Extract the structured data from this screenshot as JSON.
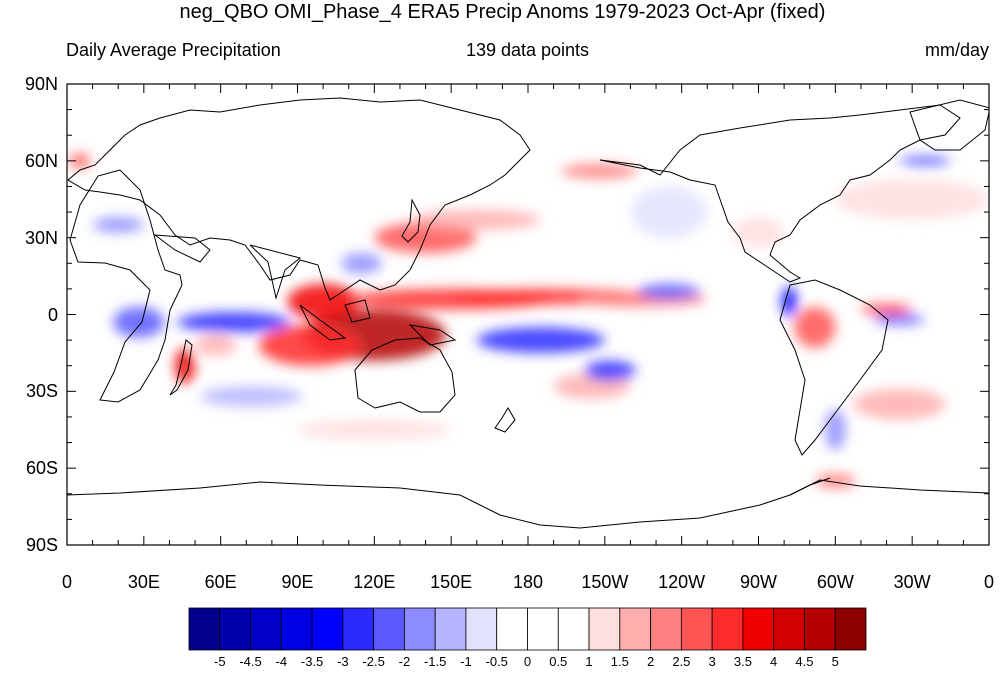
{
  "title": "neg_QBO OMI_Phase_4 ERA5 Precip Anoms 1979-2023 Oct-Apr (fixed)",
  "subtitle_left": "Daily Average Precipitation",
  "subtitle_center": "139 data points",
  "subtitle_right": "mm/day",
  "lat_labels": [
    "90N",
    "60N",
    "30N",
    "0",
    "30S",
    "60S",
    "90S"
  ],
  "lon_labels": [
    "0",
    "30E",
    "60E",
    "90E",
    "120E",
    "150E",
    "180",
    "150W",
    "120W",
    "90W",
    "60W",
    "30W",
    "0"
  ],
  "colorbar": {
    "labels": [
      "-5",
      "-4.5",
      "-4",
      "-3.5",
      "-3",
      "-2.5",
      "-2",
      "-1.5",
      "-1",
      "-0.5",
      "0",
      "0.5",
      "1",
      "1.5",
      "2",
      "2.5",
      "3",
      "3.5",
      "4",
      "4.5",
      "5"
    ],
    "colors": [
      "#00008c",
      "#0000a8",
      "#0000c8",
      "#0000e4",
      "#0000ff",
      "#2a2aff",
      "#5a5aff",
      "#8c8cff",
      "#b4b4ff",
      "#e2e2ff",
      "#ffffff",
      "#ffffff",
      "#ffdede",
      "#ffaeae",
      "#ff8080",
      "#ff5454",
      "#ff2a2a",
      "#f00000",
      "#d20000",
      "#b40000",
      "#8c0000"
    ]
  },
  "anomaly_regions": [
    {
      "lon": 120,
      "lat": -8,
      "rlon": 28,
      "rlat": 10,
      "value": 4.5
    },
    {
      "lon": 100,
      "lat": 5,
      "rlon": 14,
      "rlat": 7,
      "value": 3.5
    },
    {
      "lon": 95,
      "lat": -12,
      "rlon": 20,
      "rlat": 8,
      "value": 3
    },
    {
      "lon": 150,
      "lat": 6,
      "rlon": 40,
      "rlat": 4,
      "value": 3
    },
    {
      "lon": 190,
      "lat": 7,
      "rlon": 40,
      "rlat": 3,
      "value": 3
    },
    {
      "lon": 225,
      "lat": 6,
      "rlon": 25,
      "rlat": 3,
      "value": 2
    },
    {
      "lon": 140,
      "lat": 30,
      "rlon": 20,
      "rlat": 6,
      "value": 2.5
    },
    {
      "lon": 160,
      "lat": 37,
      "rlon": 25,
      "rlat": 4,
      "value": 1.5
    },
    {
      "lon": 208,
      "lat": 56,
      "rlon": 15,
      "rlat": 3,
      "value": 2
    },
    {
      "lon": 46,
      "lat": -20,
      "rlon": 4,
      "rlat": 7,
      "value": 3.5
    },
    {
      "lon": 58,
      "lat": -12,
      "rlon": 8,
      "rlat": 4,
      "value": 1.5
    },
    {
      "lon": 292,
      "lat": -5,
      "rlon": 8,
      "rlat": 8,
      "value": 2.5
    },
    {
      "lon": 320,
      "lat": 2,
      "rlon": 10,
      "rlat": 2,
      "value": 3
    },
    {
      "lon": 325,
      "lat": -35,
      "rlon": 18,
      "rlat": 6,
      "value": 1.5
    },
    {
      "lon": 205,
      "lat": -28,
      "rlon": 15,
      "rlat": 5,
      "value": 1.5
    },
    {
      "lon": 300,
      "lat": -65,
      "rlon": 8,
      "rlat": 3,
      "value": 2
    },
    {
      "lon": 5,
      "lat": 60,
      "rlon": 4,
      "rlat": 3,
      "value": 2.5
    },
    {
      "lon": 270,
      "lat": 32,
      "rlon": 10,
      "rlat": 6,
      "value": 1
    },
    {
      "lon": 330,
      "lat": 45,
      "rlon": 30,
      "rlat": 8,
      "value": 1
    },
    {
      "lon": 120,
      "lat": -45,
      "rlon": 30,
      "rlat": 4,
      "value": 1
    },
    {
      "lon": 65,
      "lat": -3,
      "rlon": 22,
      "rlat": 4,
      "value": -2.5
    },
    {
      "lon": 28,
      "lat": -3,
      "rlon": 10,
      "rlat": 6,
      "value": -2
    },
    {
      "lon": 185,
      "lat": -10,
      "rlon": 25,
      "rlat": 5,
      "value": -2.5
    },
    {
      "lon": 212,
      "lat": -22,
      "rlon": 10,
      "rlat": 4,
      "value": -2.5
    },
    {
      "lon": 115,
      "lat": 20,
      "rlon": 8,
      "rlat": 4,
      "value": -1.5
    },
    {
      "lon": 235,
      "lat": 9,
      "rlon": 12,
      "rlat": 3,
      "value": -2
    },
    {
      "lon": 20,
      "lat": 35,
      "rlon": 10,
      "rlat": 3,
      "value": -1.5
    },
    {
      "lon": 282,
      "lat": 5,
      "rlon": 3,
      "rlat": 6,
      "value": -3
    },
    {
      "lon": 300,
      "lat": -45,
      "rlon": 4,
      "rlat": 8,
      "value": -1.5
    },
    {
      "lon": 325,
      "lat": -2,
      "rlon": 10,
      "rlat": 2,
      "value": -2
    },
    {
      "lon": 335,
      "lat": 60,
      "rlon": 10,
      "rlat": 2,
      "value": -2
    },
    {
      "lon": 72,
      "lat": -32,
      "rlon": 20,
      "rlat": 4,
      "value": -1
    },
    {
      "lon": 235,
      "lat": 40,
      "rlon": 15,
      "rlat": 10,
      "value": -0.5
    }
  ]
}
